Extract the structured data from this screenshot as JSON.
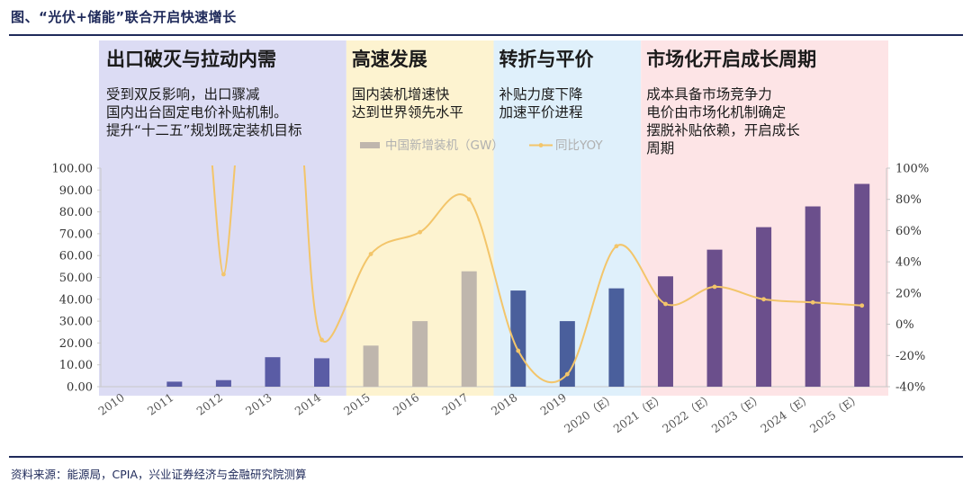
{
  "header": {
    "title": "图、“光伏+储能”联合开启快速增长",
    "source": "资料来源：能源局，CPIA，兴业证券经济与金融研究院测算"
  },
  "phases": [
    {
      "title": "出口破灭与拉动内需",
      "lines": [
        "受到双反影响，出口骤减",
        "国内出台固定电价补贴机制。",
        "提升“十二五”规划既定装机目标"
      ],
      "color": "#dcdcf4",
      "start": 0,
      "end": 4
    },
    {
      "title": "高速发展",
      "lines": [
        "国内装机增速快",
        "达到世界领先水平"
      ],
      "color": "#fdf3d0",
      "start": 5,
      "end": 7
    },
    {
      "title": "转折与平价",
      "lines": [
        "补贴力度下降",
        "加速平价进程"
      ],
      "color": "#dff0fb",
      "start": 8,
      "end": 10
    },
    {
      "title": "市场化开启成长周期",
      "lines": [
        "成本具备市场竞争力",
        "电价由市场化机制确定",
        "摆脱补贴依赖，开启成长",
        "周期"
      ],
      "color": "#fde4e6",
      "start": 11,
      "end": 15
    }
  ],
  "chart_data": {
    "type": "bar+line",
    "categories": [
      "2010",
      "2011",
      "2012",
      "2013",
      "2014",
      "2015",
      "2016",
      "2017",
      "2018",
      "2019",
      "2020（E）",
      "2021（E）",
      "2022（E）",
      "2023（E）",
      "2024（E）",
      "2025（E）"
    ],
    "series": [
      {
        "name": "中国新增装机（GW）",
        "type": "bar",
        "axis": "left",
        "values": [
          0.0,
          2.3,
          3.0,
          13.5,
          13.0,
          18.8,
          30.0,
          52.8,
          44.0,
          30.0,
          45.0,
          50.5,
          62.7,
          73.0,
          82.5,
          92.8
        ],
        "colors": [
          "#5a5ca5",
          "#5a5ca5",
          "#5a5ca5",
          "#5a5ca5",
          "#5a5ca5",
          "#bfb6ad",
          "#bfb6ad",
          "#bfb6ad",
          "#4a5f9c",
          "#4a5f9c",
          "#4a5f9c",
          "#6b4f8c",
          "#6b4f8c",
          "#6b4f8c",
          "#6b4f8c",
          "#6b4f8c"
        ]
      },
      {
        "name": "同比YOY",
        "type": "line",
        "axis": "right",
        "color": "#f3c56a",
        "values": [
          null,
          null,
          32,
          null,
          -10,
          45,
          59,
          80,
          -17,
          -32,
          50,
          13,
          24,
          16,
          14,
          12
        ]
      }
    ],
    "left_axis": {
      "min": 0,
      "max": 100,
      "step": 10,
      "ticks": [
        "0.00",
        "10.00",
        "20.00",
        "30.00",
        "40.00",
        "50.00",
        "60.00",
        "70.00",
        "80.00",
        "90.00",
        "100.00"
      ]
    },
    "right_axis": {
      "min": -40,
      "max": 100,
      "step": 20,
      "ticks": [
        "-40%",
        "-20%",
        "0%",
        "20%",
        "40%",
        "60%",
        "80%",
        "100%"
      ]
    },
    "legend": {
      "position": "top-center",
      "entries": [
        "中国新增装机（GW）",
        "同比YOY"
      ],
      "bar_color": "#bfb6ad",
      "line_color": "#f3c56a"
    }
  }
}
